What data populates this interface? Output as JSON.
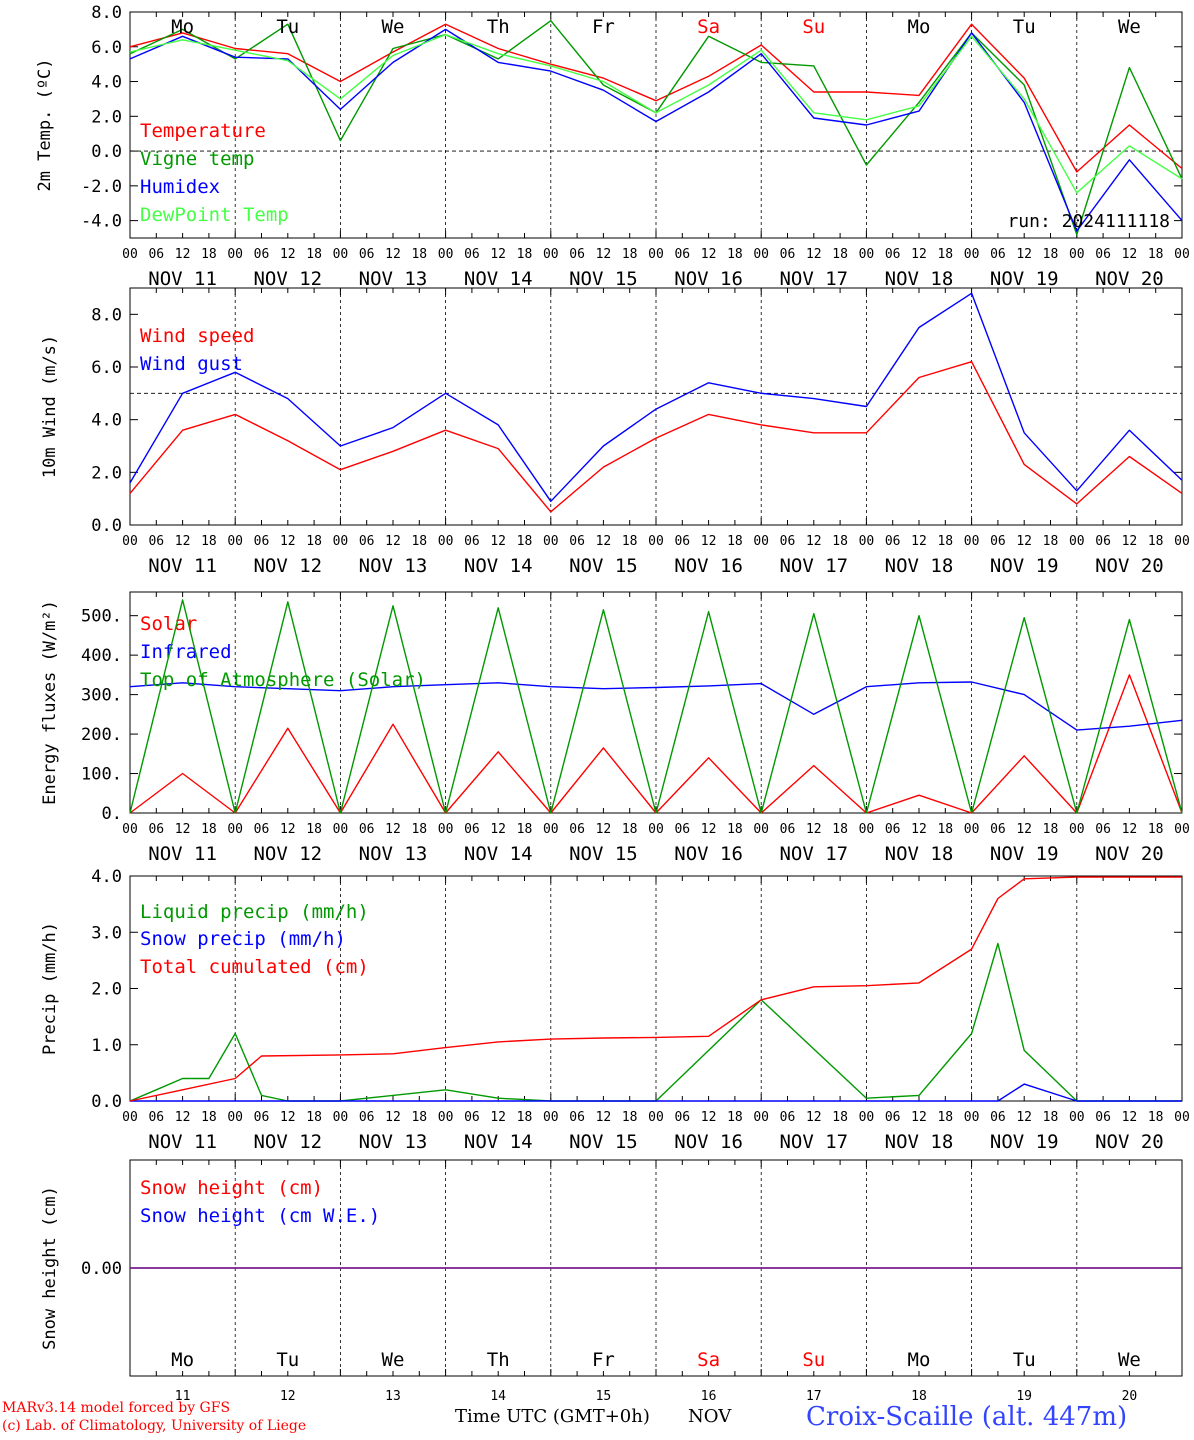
{
  "colors": {
    "red": "#ff0000",
    "green": "#009900",
    "blue": "#0000ff",
    "light_green": "#44ff44",
    "purple": "#7a1f8c",
    "axis": "#000000"
  },
  "weekdays": [
    {
      "label": "Mo",
      "color": "#000000"
    },
    {
      "label": "Tu",
      "color": "#000000"
    },
    {
      "label": "We",
      "color": "#000000"
    },
    {
      "label": "Th",
      "color": "#000000"
    },
    {
      "label": "Fr",
      "color": "#000000"
    },
    {
      "label": "Sa",
      "color": "#ff0000"
    },
    {
      "label": "Su",
      "color": "#ff0000"
    },
    {
      "label": "Mo",
      "color": "#000000"
    },
    {
      "label": "Tu",
      "color": "#000000"
    },
    {
      "label": "We",
      "color": "#000000"
    }
  ],
  "date_labels": [
    "NOV 11",
    "NOV 12",
    "NOV 13",
    "NOV 14",
    "NOV 15",
    "NOV 16",
    "NOV 17",
    "NOV 18",
    "NOV 19",
    "NOV 20"
  ],
  "hour_labels": [
    "00",
    "06",
    "12",
    "18"
  ],
  "day_numbers": [
    "11",
    "12",
    "13",
    "14",
    "15",
    "16",
    "17",
    "18",
    "19",
    "20"
  ],
  "x_axis_title": "Time UTC (GMT+0h)",
  "month": "NOV",
  "credits": [
    "MARv3.14 model forced by GFS",
    "(c) Lab. of Climatology, University of Liege"
  ],
  "station": "Croix-Scaille (alt. 447m)",
  "chart_data": [
    {
      "type": "line",
      "x_unit": "hours since NOV 11 00 UTC",
      "ylabel": "2m Temp. (ºC)",
      "ylim": [
        -5,
        8
      ],
      "yticks": [
        "-4.0",
        "-2.0",
        "0.0",
        "2.0",
        "4.0",
        "6.0",
        "8.0"
      ],
      "reference_line": 0,
      "annotation": "run: 2024111118",
      "series": [
        {
          "name": "Temperature",
          "color": "#ff0000",
          "x": [
            0,
            12,
            24,
            36,
            48,
            60,
            72,
            84,
            96,
            108,
            120,
            132,
            144,
            156,
            168,
            180,
            192,
            204,
            216,
            228,
            240
          ],
          "y": [
            6,
            6.8,
            5.9,
            5.6,
            4,
            5.7,
            7.3,
            5.9,
            5,
            4.2,
            2.9,
            4.3,
            6.1,
            3.4,
            3.4,
            3.2,
            7.3,
            4.2,
            -1.2,
            1.5,
            -1
          ]
        },
        {
          "name": "Vigne temp",
          "color": "#009900",
          "x": [
            0,
            12,
            24,
            36,
            48,
            60,
            72,
            84,
            96,
            108,
            120,
            132,
            144,
            156,
            168,
            180,
            192,
            204,
            216,
            228,
            240
          ],
          "y": [
            5.6,
            7,
            5.3,
            7.3,
            0.6,
            5.9,
            6.7,
            5.3,
            7.5,
            3.8,
            2.2,
            6.6,
            5.1,
            4.9,
            -0.8,
            2.8,
            6.8,
            3.8,
            -4.8,
            4.8,
            -1.6
          ]
        },
        {
          "name": "Humidex",
          "color": "#0000ff",
          "x": [
            0,
            12,
            24,
            36,
            48,
            60,
            72,
            84,
            96,
            108,
            120,
            132,
            144,
            156,
            168,
            180,
            192,
            204,
            216,
            228,
            240
          ],
          "y": [
            5.3,
            6.6,
            5.4,
            5.3,
            2.4,
            5.1,
            7,
            5.1,
            4.6,
            3.5,
            1.7,
            3.4,
            5.6,
            1.9,
            1.5,
            2.3,
            6.8,
            2.8,
            -4.6,
            -0.5,
            -4
          ]
        },
        {
          "name": "DewPoint Temp",
          "color": "#44ff44",
          "x": [
            0,
            12,
            24,
            36,
            48,
            60,
            72,
            84,
            96,
            108,
            120,
            132,
            144,
            156,
            168,
            180,
            192,
            204,
            216,
            228,
            240
          ],
          "y": [
            5.7,
            6.4,
            5.8,
            5.2,
            3,
            5.5,
            6.7,
            5.6,
            4.9,
            4,
            2.2,
            3.8,
            5.8,
            2.2,
            1.8,
            2.6,
            6.6,
            3,
            -2.4,
            0.3,
            -1.6
          ]
        }
      ]
    },
    {
      "type": "line",
      "x_unit": "hours since NOV 11 00 UTC",
      "ylabel": "10m Wind (m/s)",
      "ylim": [
        0,
        9
      ],
      "yticks": [
        "0.0",
        "2.0",
        "4.0",
        "6.0",
        "8.0"
      ],
      "reference_line": 5,
      "series": [
        {
          "name": "Wind speed",
          "color": "#ff0000",
          "x": [
            0,
            12,
            24,
            36,
            48,
            60,
            72,
            84,
            96,
            108,
            120,
            132,
            144,
            156,
            168,
            180,
            192,
            204,
            216,
            228,
            240
          ],
          "y": [
            1.2,
            3.6,
            4.2,
            3.2,
            2.1,
            2.8,
            3.6,
            2.9,
            0.5,
            2.2,
            3.3,
            4.2,
            3.8,
            3.5,
            3.5,
            5.6,
            6.2,
            2.3,
            0.8,
            2.6,
            1.2
          ]
        },
        {
          "name": "Wind gust",
          "color": "#0000ff",
          "x": [
            0,
            12,
            24,
            36,
            48,
            60,
            72,
            84,
            96,
            108,
            120,
            132,
            144,
            156,
            168,
            180,
            192,
            204,
            216,
            228,
            240
          ],
          "y": [
            1.6,
            5,
            5.8,
            4.8,
            3,
            3.7,
            5,
            3.8,
            0.9,
            3,
            4.4,
            5.4,
            5,
            4.8,
            4.5,
            7.5,
            8.8,
            3.5,
            1.3,
            3.6,
            1.7
          ]
        }
      ]
    },
    {
      "type": "line",
      "x_unit": "hours since NOV 11 00 UTC",
      "ylabel": "Energy fluxes (W/m²)",
      "ylim": [
        0,
        560
      ],
      "yticks": [
        "0.",
        "100.",
        "200.",
        "300.",
        "400.",
        "500."
      ],
      "series": [
        {
          "name": "Solar",
          "color": "#ff0000",
          "x": [
            0,
            12,
            24,
            36,
            48,
            60,
            72,
            84,
            96,
            108,
            120,
            132,
            144,
            156,
            168,
            180,
            192,
            204,
            216,
            228,
            240
          ],
          "y": [
            0,
            100,
            0,
            215,
            0,
            225,
            0,
            155,
            0,
            165,
            0,
            140,
            0,
            120,
            0,
            45,
            0,
            145,
            0,
            350,
            0
          ]
        },
        {
          "name": "Infrared",
          "color": "#0000ff",
          "x": [
            0,
            12,
            24,
            36,
            48,
            60,
            72,
            84,
            96,
            108,
            120,
            132,
            144,
            156,
            168,
            180,
            192,
            204,
            216,
            228,
            240
          ],
          "y": [
            320,
            330,
            320,
            315,
            310,
            320,
            325,
            330,
            320,
            315,
            318,
            322,
            328,
            250,
            320,
            330,
            332,
            300,
            210,
            220,
            235
          ]
        },
        {
          "name": "Top of Atmosphere (Solar)",
          "color": "#009900",
          "x": [
            0,
            12,
            24,
            36,
            48,
            60,
            72,
            84,
            96,
            108,
            120,
            132,
            144,
            156,
            168,
            180,
            192,
            204,
            216,
            228,
            240
          ],
          "y": [
            0,
            540,
            0,
            535,
            0,
            525,
            0,
            520,
            0,
            515,
            0,
            510,
            0,
            505,
            0,
            500,
            0,
            495,
            0,
            490,
            0
          ]
        }
      ]
    },
    {
      "type": "line",
      "x_unit": "hours since NOV 11 00 UTC",
      "ylabel": "Precip (mm/h)",
      "ylim": [
        0,
        4
      ],
      "yticks": [
        "0.0",
        "1.0",
        "2.0",
        "3.0",
        "4.0"
      ],
      "series": [
        {
          "name": "Liquid precip (mm/h)",
          "color": "#009900",
          "x": [
            0,
            6,
            12,
            18,
            24,
            30,
            36,
            48,
            72,
            84,
            96,
            120,
            144,
            168,
            180,
            192,
            198,
            204,
            216,
            240
          ],
          "y": [
            0,
            0.2,
            0.4,
            0.4,
            1.2,
            0.1,
            0,
            0,
            0.2,
            0.05,
            0,
            0,
            1.8,
            0.05,
            0.1,
            1.2,
            2.8,
            0.9,
            0,
            0
          ]
        },
        {
          "name": "Snow precip (mm/h)",
          "color": "#0000ff",
          "x": [
            0,
            192,
            198,
            204,
            216,
            240
          ],
          "y": [
            0,
            0,
            0,
            0.3,
            0,
            0
          ]
        },
        {
          "name": "Total cumulated (cm)",
          "color": "#ff0000",
          "x": [
            0,
            12,
            24,
            30,
            48,
            60,
            72,
            84,
            96,
            108,
            120,
            132,
            144,
            156,
            168,
            180,
            192,
            198,
            204,
            216,
            240
          ],
          "y": [
            0,
            0.2,
            0.4,
            0.8,
            0.82,
            0.84,
            0.95,
            1.05,
            1.1,
            1.12,
            1.13,
            1.15,
            1.8,
            2.03,
            2.05,
            2.1,
            2.7,
            3.6,
            3.95,
            3.98,
            3.98
          ]
        }
      ]
    },
    {
      "type": "line",
      "x_unit": "hours since NOV 11 00 UTC",
      "ylabel": "Snow height (cm)",
      "ylim": [
        -1,
        1
      ],
      "yticks": [
        "0.00"
      ],
      "series": [
        {
          "name": "Snow height (cm)",
          "color": "#ff0000",
          "x": [
            0,
            240
          ],
          "y": [
            0,
            0
          ]
        },
        {
          "name": "Snow height (cm W.E.)",
          "color": "#0000ff",
          "x": [
            0,
            240
          ],
          "y": [
            0,
            0
          ]
        }
      ]
    }
  ]
}
